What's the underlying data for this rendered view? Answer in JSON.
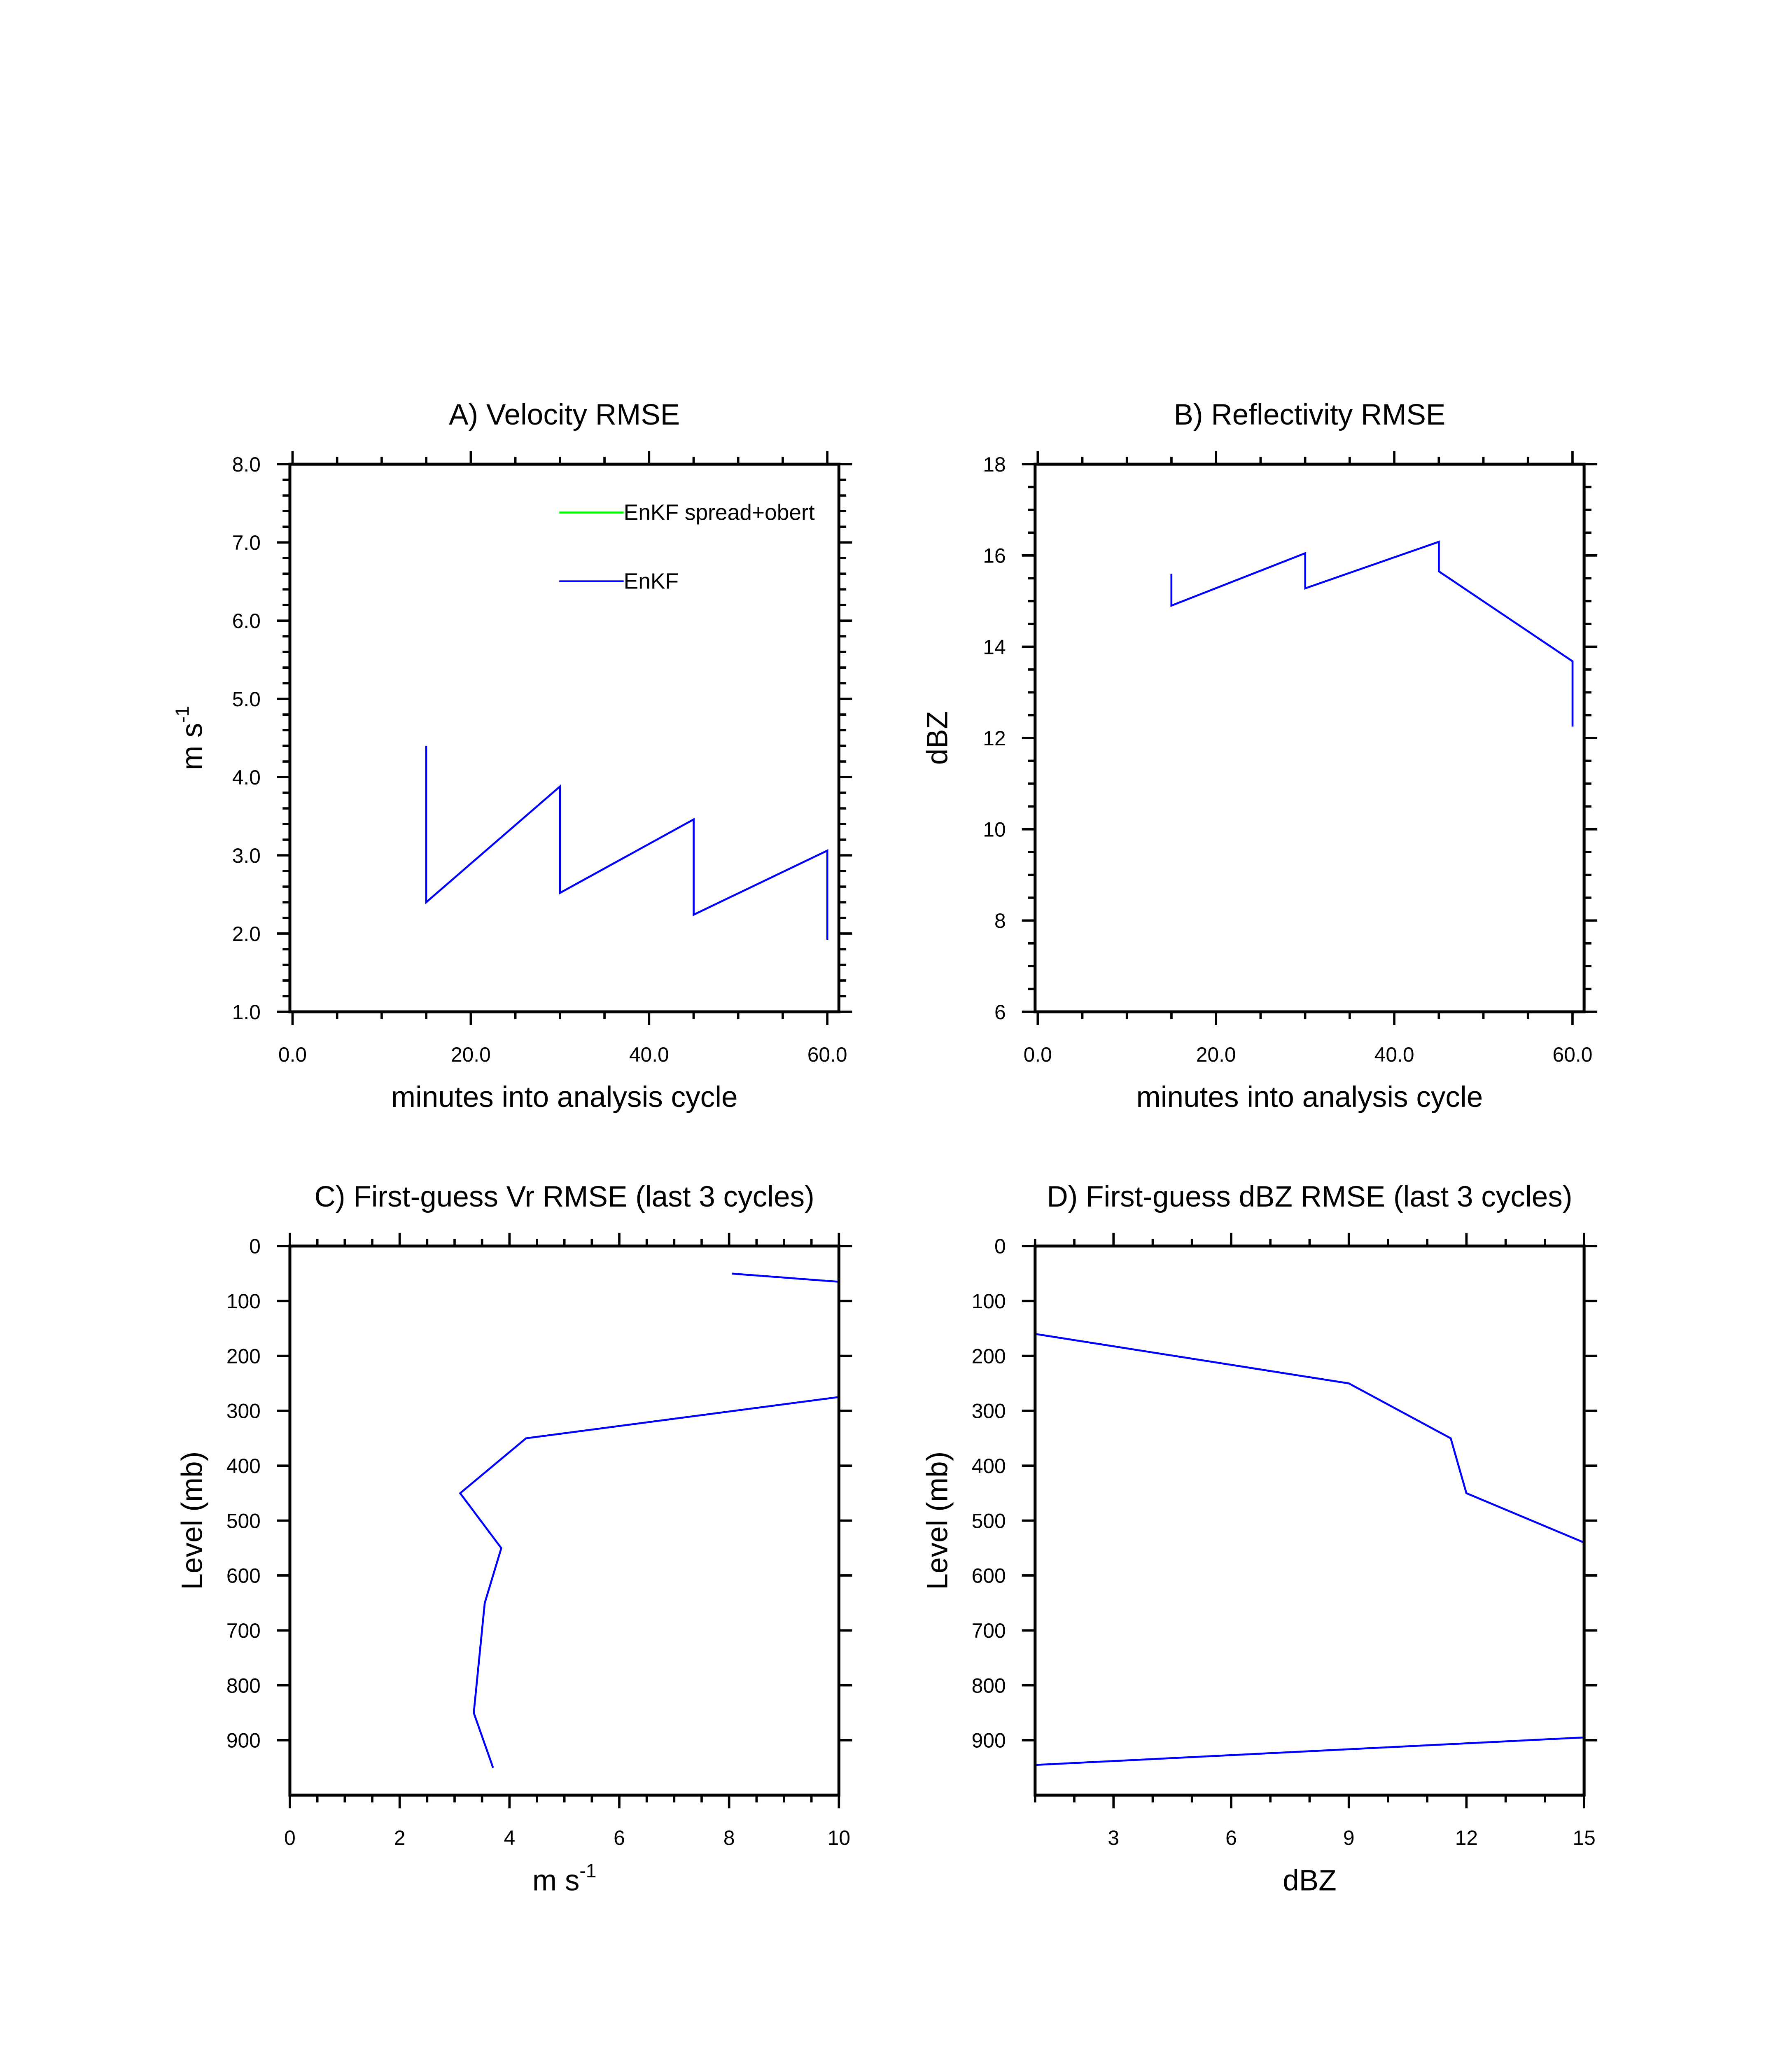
{
  "colors": {
    "enkf": "#0000ff",
    "spread": "#00ff00",
    "axis": "#000000"
  },
  "chart_data": [
    {
      "id": "A",
      "type": "line",
      "title": "A) Velocity RMSE",
      "xlabel": "minutes into analysis cycle",
      "ylabel": "m s",
      "ylabel_sup": "-1",
      "xlim": [
        -0.3,
        61.3
      ],
      "ylim": [
        1.0,
        8.0
      ],
      "xticks": [
        0,
        20,
        40,
        60
      ],
      "xtick_labels": [
        "0.0",
        "20.0",
        "40.0",
        "60.0"
      ],
      "xminor": 5,
      "yticks": [
        1,
        2,
        3,
        4,
        5,
        6,
        7,
        8
      ],
      "ytick_labels": [
        "1.0",
        "2.0",
        "3.0",
        "4.0",
        "5.0",
        "6.0",
        "7.0",
        "8.0"
      ],
      "yminor": 0.2,
      "legend": {
        "placement": "top-right",
        "entries": [
          {
            "label": "EnKF spread+obert",
            "color": "#00ff00"
          },
          {
            "label": "EnKF",
            "color": "#0000ff"
          }
        ]
      },
      "series": [
        {
          "name": "EnKF",
          "segments": [
            [
              [
                15,
                4.4
              ],
              [
                15,
                2.4
              ],
              [
                30,
                3.88
              ],
              [
                30,
                2.52
              ],
              [
                45,
                3.46
              ],
              [
                45,
                2.24
              ],
              [
                60,
                3.06
              ],
              [
                60,
                1.92
              ]
            ]
          ]
        }
      ]
    },
    {
      "id": "B",
      "type": "line",
      "title": "B) Reflectivity RMSE",
      "xlabel": "minutes into analysis cycle",
      "ylabel": "dBZ",
      "xlim": [
        -0.3,
        61.3
      ],
      "ylim": [
        6,
        18
      ],
      "xticks": [
        0,
        20,
        40,
        60
      ],
      "xtick_labels": [
        "0.0",
        "20.0",
        "40.0",
        "60.0"
      ],
      "xminor": 5,
      "yticks": [
        6,
        8,
        10,
        12,
        14,
        16,
        18
      ],
      "ytick_labels": [
        "6",
        "8",
        "10",
        "12",
        "14",
        "16",
        "18"
      ],
      "yminor": 0.5,
      "series": [
        {
          "name": "EnKF",
          "segments": [
            [
              [
                15,
                15.6
              ],
              [
                15,
                14.9
              ],
              [
                30,
                16.05
              ],
              [
                30,
                15.28
              ],
              [
                45,
                16.3
              ],
              [
                45,
                15.65
              ],
              [
                60,
                13.68
              ],
              [
                60,
                12.25
              ]
            ]
          ]
        }
      ]
    },
    {
      "id": "C",
      "type": "line",
      "title": "C) First-guess Vr RMSE (last 3 cycles)",
      "xlabel": "m s",
      "xlabel_sup": "-1",
      "ylabel": "Level (mb)",
      "xlim": [
        0,
        10
      ],
      "ylim": [
        1000,
        0
      ],
      "y_inverted": true,
      "xticks": [
        0,
        2,
        4,
        6,
        8,
        10
      ],
      "xtick_labels": [
        "0",
        "2",
        "4",
        "6",
        "8",
        "10"
      ],
      "xminor": 0.5,
      "yticks": [
        0,
        100,
        200,
        300,
        400,
        500,
        600,
        700,
        800,
        900
      ],
      "ytick_labels": [
        "0",
        "100",
        "200",
        "300",
        "400",
        "500",
        "600",
        "700",
        "800",
        "900"
      ],
      "yminor": null,
      "series": [
        {
          "name": "EnKF",
          "segments": [
            [
              [
                8.05,
                50
              ],
              [
                10,
                65
              ]
            ],
            [
              [
                10,
                275
              ],
              [
                4.3,
                350
              ],
              [
                3.1,
                450
              ],
              [
                3.85,
                550
              ],
              [
                3.55,
                650
              ],
              [
                3.35,
                850
              ],
              [
                3.7,
                950
              ]
            ]
          ]
        }
      ]
    },
    {
      "id": "D",
      "type": "line",
      "title": "D)  First-guess dBZ RMSE (last 3 cycles)",
      "xlabel": "dBZ",
      "ylabel": "Level (mb)",
      "xlim": [
        1,
        15
      ],
      "ylim": [
        1000,
        0
      ],
      "y_inverted": true,
      "xticks": [
        3,
        6,
        9,
        12,
        15
      ],
      "xtick_labels": [
        "3",
        "6",
        "9",
        "12",
        "15"
      ],
      "xminor": 1,
      "yticks": [
        0,
        100,
        200,
        300,
        400,
        500,
        600,
        700,
        800,
        900
      ],
      "ytick_labels": [
        "0",
        "100",
        "200",
        "300",
        "400",
        "500",
        "600",
        "700",
        "800",
        "900"
      ],
      "yminor": null,
      "series": [
        {
          "name": "EnKF",
          "segments": [
            [
              [
                1,
                160
              ],
              [
                9,
                250
              ],
              [
                11.6,
                350
              ],
              [
                12,
                450
              ],
              [
                15,
                540
              ]
            ],
            [
              [
                1,
                945
              ],
              [
                15,
                895
              ]
            ]
          ]
        }
      ]
    }
  ]
}
